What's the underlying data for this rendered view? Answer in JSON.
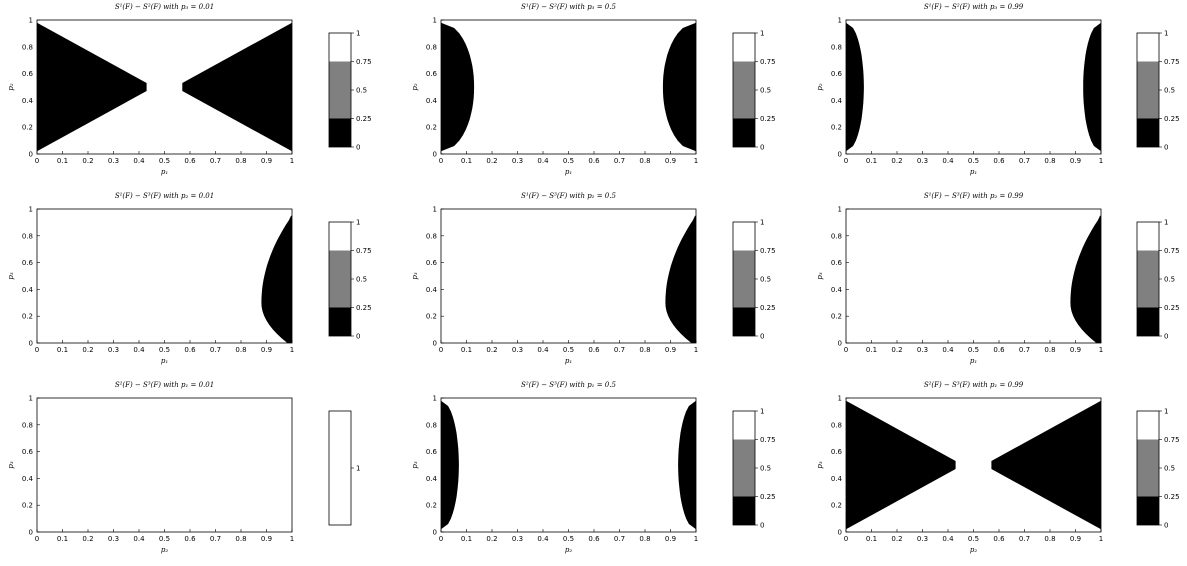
{
  "chart_data": [
    {
      "type": "heatmap",
      "title": "S¹(F) − S²(F) with p₃ = 0.01",
      "xlabel": "p₁",
      "ylabel": "p₂",
      "xlim": [
        0,
        1
      ],
      "ylim": [
        0,
        1
      ],
      "xticks": [
        "0",
        "0.1",
        "0.2",
        "0.3",
        "0.4",
        "0.5",
        "0.6",
        "0.7",
        "0.8",
        "0.9",
        "1"
      ],
      "yticks": [
        "0",
        "0.2",
        "0.4",
        "0.6",
        "0.8",
        "1"
      ],
      "region": {
        "shape": "two-wedges",
        "left_tip": 0.43,
        "right_tip": 0.57,
        "center": 0.5,
        "value": 0
      },
      "colorbar": {
        "ticks": [
          "0",
          "0.25",
          "0.5",
          "0.75",
          "1"
        ],
        "colors": [
          "#000000",
          "#808080",
          "#ffffff"
        ],
        "bounds": [
          0,
          0.25,
          0.75,
          1
        ]
      }
    },
    {
      "type": "heatmap",
      "title": "S¹(F) − S²(F) with p₃ = 0.5",
      "xlabel": "p₁",
      "ylabel": "p₂",
      "xlim": [
        0,
        1
      ],
      "ylim": [
        0,
        1
      ],
      "xticks": [
        "0",
        "0.1",
        "0.2",
        "0.3",
        "0.4",
        "0.5",
        "0.6",
        "0.7",
        "0.8",
        "0.9",
        "1"
      ],
      "yticks": [
        "0",
        "0.2",
        "0.4",
        "0.6",
        "0.8",
        "1"
      ],
      "region": {
        "shape": "two-lobes",
        "left_tip": 0.13,
        "right_tip": 0.87,
        "center": 0.5,
        "value": 0
      },
      "colorbar": {
        "ticks": [
          "0",
          "0.25",
          "0.5",
          "0.75",
          "1"
        ],
        "colors": [
          "#000000",
          "#808080",
          "#ffffff"
        ],
        "bounds": [
          0,
          0.25,
          0.75,
          1
        ]
      }
    },
    {
      "type": "heatmap",
      "title": "S¹(F) − S²(F) with p₃ = 0.99",
      "xlabel": "p₁",
      "ylabel": "p₂",
      "xlim": [
        0,
        1
      ],
      "ylim": [
        0,
        1
      ],
      "xticks": [
        "0",
        "0.1",
        "0.2",
        "0.3",
        "0.4",
        "0.5",
        "0.6",
        "0.7",
        "0.8",
        "0.9",
        "1"
      ],
      "yticks": [
        "0",
        "0.2",
        "0.4",
        "0.6",
        "0.8",
        "1"
      ],
      "region": {
        "shape": "two-lobes",
        "left_tip": 0.07,
        "right_tip": 0.93,
        "center": 0.5,
        "value": 0
      },
      "colorbar": {
        "ticks": [
          "0",
          "0.25",
          "0.5",
          "0.75",
          "1"
        ],
        "colors": [
          "#000000",
          "#808080",
          "#ffffff"
        ],
        "bounds": [
          0,
          0.25,
          0.75,
          1
        ]
      }
    },
    {
      "type": "heatmap",
      "title": "S¹(F) − S³(F) with p₂ = 0.01",
      "xlabel": "p₁",
      "ylabel": "p₃",
      "xlim": [
        0,
        1
      ],
      "ylim": [
        0,
        1
      ],
      "xticks": [
        "0",
        "0.1",
        "0.2",
        "0.3",
        "0.4",
        "0.5",
        "0.6",
        "0.7",
        "0.8",
        "0.9",
        "1"
      ],
      "yticks": [
        "0",
        "0.2",
        "0.4",
        "0.6",
        "0.8",
        "1"
      ],
      "region": {
        "shape": "right-lobe",
        "right_tip": 0.88,
        "center": 0.3,
        "ymax": 0.95,
        "value": 0
      },
      "colorbar": {
        "ticks": [
          "0",
          "0.25",
          "0.5",
          "0.75",
          "1"
        ],
        "colors": [
          "#000000",
          "#808080",
          "#ffffff"
        ],
        "bounds": [
          0,
          0.25,
          0.75,
          1
        ]
      }
    },
    {
      "type": "heatmap",
      "title": "S¹(F) − S³(F) with p₂ = 0.5",
      "xlabel": "p₁",
      "ylabel": "p₃",
      "xlim": [
        0,
        1
      ],
      "ylim": [
        0,
        1
      ],
      "xticks": [
        "0",
        "0.1",
        "0.2",
        "0.3",
        "0.4",
        "0.5",
        "0.6",
        "0.7",
        "0.8",
        "0.9",
        "1"
      ],
      "yticks": [
        "0",
        "0.2",
        "0.4",
        "0.6",
        "0.8",
        "1"
      ],
      "region": {
        "shape": "right-lobe",
        "right_tip": 0.88,
        "center": 0.3,
        "ymax": 0.95,
        "value": 0
      },
      "colorbar": {
        "ticks": [
          "0",
          "0.25",
          "0.5",
          "0.75",
          "1"
        ],
        "colors": [
          "#000000",
          "#808080",
          "#ffffff"
        ],
        "bounds": [
          0,
          0.25,
          0.75,
          1
        ]
      }
    },
    {
      "type": "heatmap",
      "title": "S¹(F) − S³(F) with p₂ = 0.99",
      "xlabel": "p₁",
      "ylabel": "p₃",
      "xlim": [
        0,
        1
      ],
      "ylim": [
        0,
        1
      ],
      "xticks": [
        "0",
        "0.1",
        "0.2",
        "0.3",
        "0.4",
        "0.5",
        "0.6",
        "0.7",
        "0.8",
        "0.9",
        "1"
      ],
      "yticks": [
        "0",
        "0.2",
        "0.4",
        "0.6",
        "0.8",
        "1"
      ],
      "region": {
        "shape": "right-lobe",
        "right_tip": 0.88,
        "center": 0.3,
        "ymax": 0.95,
        "value": 0
      },
      "colorbar": {
        "ticks": [
          "0",
          "0.25",
          "0.5",
          "0.75",
          "1"
        ],
        "colors": [
          "#000000",
          "#808080",
          "#ffffff"
        ],
        "bounds": [
          0,
          0.25,
          0.75,
          1
        ]
      }
    },
    {
      "type": "heatmap",
      "title": "S²(F) − S³(F) with p₁ = 0.01",
      "xlabel": "p₂",
      "ylabel": "p₃",
      "xlim": [
        0,
        1
      ],
      "ylim": [
        0,
        1
      ],
      "xticks": [
        "0",
        "0.1",
        "0.2",
        "0.3",
        "0.4",
        "0.5",
        "0.6",
        "0.7",
        "0.8",
        "0.9",
        "1"
      ],
      "yticks": [
        "0",
        "0.2",
        "0.4",
        "0.6",
        "0.8",
        "1"
      ],
      "region": {
        "shape": "none",
        "value": 1
      },
      "colorbar": {
        "ticks": [
          "1"
        ],
        "colors": [
          "#ffffff"
        ],
        "bounds": [
          0,
          1
        ]
      }
    },
    {
      "type": "heatmap",
      "title": "S²(F) − S³(F) with p₁ = 0.5",
      "xlabel": "p₂",
      "ylabel": "p₃",
      "xlim": [
        0,
        1
      ],
      "ylim": [
        0,
        1
      ],
      "xticks": [
        "0",
        "0.1",
        "0.2",
        "0.3",
        "0.4",
        "0.5",
        "0.6",
        "0.7",
        "0.8",
        "0.9",
        "1"
      ],
      "yticks": [
        "0",
        "0.2",
        "0.4",
        "0.6",
        "0.8",
        "1"
      ],
      "region": {
        "shape": "two-lobes",
        "left_tip": 0.07,
        "right_tip": 0.93,
        "center": 0.5,
        "value": 0
      },
      "colorbar": {
        "ticks": [
          "0",
          "0.25",
          "0.5",
          "0.75",
          "1"
        ],
        "colors": [
          "#000000",
          "#808080",
          "#ffffff"
        ],
        "bounds": [
          0,
          0.25,
          0.75,
          1
        ]
      }
    },
    {
      "type": "heatmap",
      "title": "S²(F) − S³(F) with p₁ = 0.99",
      "xlabel": "p₂",
      "ylabel": "p₃",
      "xlim": [
        0,
        1
      ],
      "ylim": [
        0,
        1
      ],
      "xticks": [
        "0",
        "0.1",
        "0.2",
        "0.3",
        "0.4",
        "0.5",
        "0.6",
        "0.7",
        "0.8",
        "0.9",
        "1"
      ],
      "yticks": [
        "0",
        "0.2",
        "0.4",
        "0.6",
        "0.8",
        "1"
      ],
      "region": {
        "shape": "two-wedges",
        "left_tip": 0.43,
        "right_tip": 0.57,
        "center": 0.5,
        "value": 0
      },
      "colorbar": {
        "ticks": [
          "0",
          "0.25",
          "0.5",
          "0.75",
          "1"
        ],
        "colors": [
          "#000000",
          "#808080",
          "#ffffff"
        ],
        "bounds": [
          0,
          0.25,
          0.75,
          1
        ]
      }
    }
  ]
}
